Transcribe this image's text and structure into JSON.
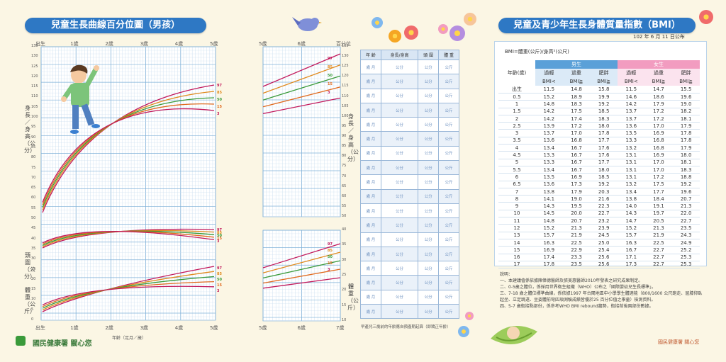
{
  "left_panel": {
    "title": "兒童生長曲線百分位圖（男孩）",
    "top_age_labels": [
      "出生",
      "1歲",
      "2歲",
      "3歲",
      "4歲",
      "5歲"
    ],
    "bottom_age_labels": [
      "出生",
      "1歲",
      "2歲",
      "3歲",
      "4歲",
      "5歲"
    ],
    "x_axis_label": "年齡（足月／歲）",
    "height_axis_label": "身長／身高（公分）",
    "head_axis_label": "頭圍（公分）",
    "weight_axis_label": "體重（公斤）",
    "left_scale": [
      "135",
      "130",
      "125",
      "120",
      "115",
      "110",
      "105",
      "100",
      "95",
      "90",
      "85",
      "80",
      "75",
      "70",
      "65",
      "60",
      "55",
      "50",
      "45",
      "40",
      "35",
      "30",
      "25",
      "20",
      "15",
      "10",
      "5",
      "0"
    ],
    "percentiles": [
      "97",
      "85",
      "50",
      "15",
      "3"
    ],
    "footer": "國民健康署 關心您"
  },
  "middle_panel": {
    "top_labels": [
      "5歲",
      "6歲",
      "百分位"
    ],
    "bottom_labels": [
      "5歲",
      "6歲",
      "7歲"
    ],
    "height_axis_label": "身長／身高（公分）",
    "weight_axis_label": "體重（公斤）",
    "right_scale_top": [
      "135",
      "130",
      "125",
      "120",
      "115",
      "110",
      "105",
      "100",
      "95",
      "90",
      "85",
      "80",
      "75",
      "70",
      "65",
      "60",
      "55",
      "50"
    ],
    "right_scale_bottom": [
      "40",
      "35",
      "30",
      "25",
      "20",
      "15",
      "10"
    ],
    "percentiles": [
      "97",
      "85",
      "50",
      "15",
      "3"
    ]
  },
  "record_table": {
    "headers": [
      "年 齡",
      "身長/身高",
      "頭 圍",
      "體 重"
    ],
    "row_age": "歲\n月",
    "row_unit_cm": "公分",
    "row_unit_kg": "公斤",
    "row_count": 18,
    "footnote": "早產兒三歲前的年齡應自預產期起算（即矯正年齡）"
  },
  "bmi_panel": {
    "title": "兒童及青少年生長身體質量指數（BMI）",
    "publish_date": "102 年 6 月 11 日公布",
    "formula": "BMI=體重(公斤)/身高²(公尺)",
    "male_label": "男生",
    "female_label": "女生",
    "age_header": "年齡(歲)",
    "sub_headers": [
      "過輕",
      "過重",
      "肥胖",
      "過輕",
      "過重",
      "肥胖"
    ],
    "sub_ops": [
      "BMI<",
      "BMI≧",
      "BMI≧",
      "BMI<",
      "BMI≧",
      "BMI≧"
    ],
    "rows": [
      [
        "出生",
        "11.5",
        "14.8",
        "15.8",
        "11.5",
        "14.7",
        "15.5"
      ],
      [
        "0.5",
        "15.2",
        "18.9",
        "19.9",
        "14.6",
        "18.6",
        "19.6"
      ],
      [
        "1",
        "14.8",
        "18.3",
        "19.2",
        "14.2",
        "17.9",
        "19.0"
      ],
      [
        "1.5",
        "14.2",
        "17.5",
        "18.5",
        "13.7",
        "17.2",
        "18.2"
      ],
      [
        "2",
        "14.2",
        "17.4",
        "18.3",
        "13.7",
        "17.2",
        "18.1"
      ],
      [
        "2.5",
        "13.9",
        "17.2",
        "18.0",
        "13.6",
        "17.0",
        "17.9"
      ],
      [
        "3",
        "13.7",
        "17.0",
        "17.8",
        "13.5",
        "16.9",
        "17.8"
      ],
      [
        "3.5",
        "13.6",
        "16.8",
        "17.7",
        "13.3",
        "16.8",
        "17.8"
      ],
      [
        "4",
        "13.4",
        "16.7",
        "17.6",
        "13.2",
        "16.8",
        "17.9"
      ],
      [
        "4.5",
        "13.3",
        "16.7",
        "17.6",
        "13.1",
        "16.9",
        "18.0"
      ],
      [
        "5",
        "13.3",
        "16.7",
        "17.7",
        "13.1",
        "17.0",
        "18.1"
      ],
      [
        "5.5",
        "13.4",
        "16.7",
        "18.0",
        "13.1",
        "17.0",
        "18.3"
      ],
      [
        "6",
        "13.5",
        "16.9",
        "18.5",
        "13.1",
        "17.2",
        "18.8"
      ],
      [
        "6.5",
        "13.6",
        "17.3",
        "19.2",
        "13.2",
        "17.5",
        "19.2"
      ],
      [
        "7",
        "13.8",
        "17.9",
        "20.3",
        "13.4",
        "17.7",
        "19.6"
      ],
      [
        "8",
        "14.1",
        "19.0",
        "21.6",
        "13.8",
        "18.4",
        "20.7"
      ],
      [
        "9",
        "14.3",
        "19.5",
        "22.3",
        "14.0",
        "19.1",
        "21.3"
      ],
      [
        "10",
        "14.5",
        "20.0",
        "22.7",
        "14.3",
        "19.7",
        "22.0"
      ],
      [
        "11",
        "14.8",
        "20.7",
        "23.2",
        "14.7",
        "20.5",
        "22.7"
      ],
      [
        "12",
        "15.2",
        "21.3",
        "23.9",
        "15.2",
        "21.3",
        "23.5"
      ],
      [
        "13",
        "15.7",
        "21.9",
        "24.5",
        "15.7",
        "21.9",
        "24.3"
      ],
      [
        "14",
        "16.3",
        "22.5",
        "25.0",
        "16.3",
        "22.5",
        "24.9"
      ],
      [
        "15",
        "16.9",
        "22.9",
        "25.4",
        "16.7",
        "22.7",
        "25.2"
      ],
      [
        "16",
        "17.4",
        "23.3",
        "25.6",
        "17.1",
        "22.7",
        "25.3"
      ],
      [
        "17",
        "17.8",
        "23.5",
        "25.6",
        "17.3",
        "22.7",
        "25.3"
      ]
    ],
    "notes_title": "說明：",
    "notes": [
      "一、本建議值係依據陳偉德醫師及張美惠醫師2010年發表之研究成果制定。",
      "二、0-5歲之體位，係採用世界衛生組織（WHO）公布之「國際嬰幼兒生長標準」。",
      "三、7-18 歲之體位標準曲線，係依據1997 年台閩地區中小學學生體適能（800/1600 公尺跑走、屈膝仰臥起坐、立定跳遠、坐姿體前彎四項測驗成績皆優於25 百分位值之學童）檢測資料。",
      "四、5-7 歲銜接點部份，係參考WHO BMI rebound趨勢，銜接前後兩部份數據。"
    ],
    "footer": "國民健康署 關心您"
  },
  "colors": {
    "banner": "#2e78c4",
    "grid_major": "#7fb0d8",
    "grid_minor": "#c7dcef",
    "p97": "#c2185b",
    "p85": "#e08a1e",
    "p50": "#3a9a3a",
    "p15": "#e06a1e",
    "p3": "#c2185b",
    "male": "#5aa0d8",
    "female": "#f29cc0"
  }
}
